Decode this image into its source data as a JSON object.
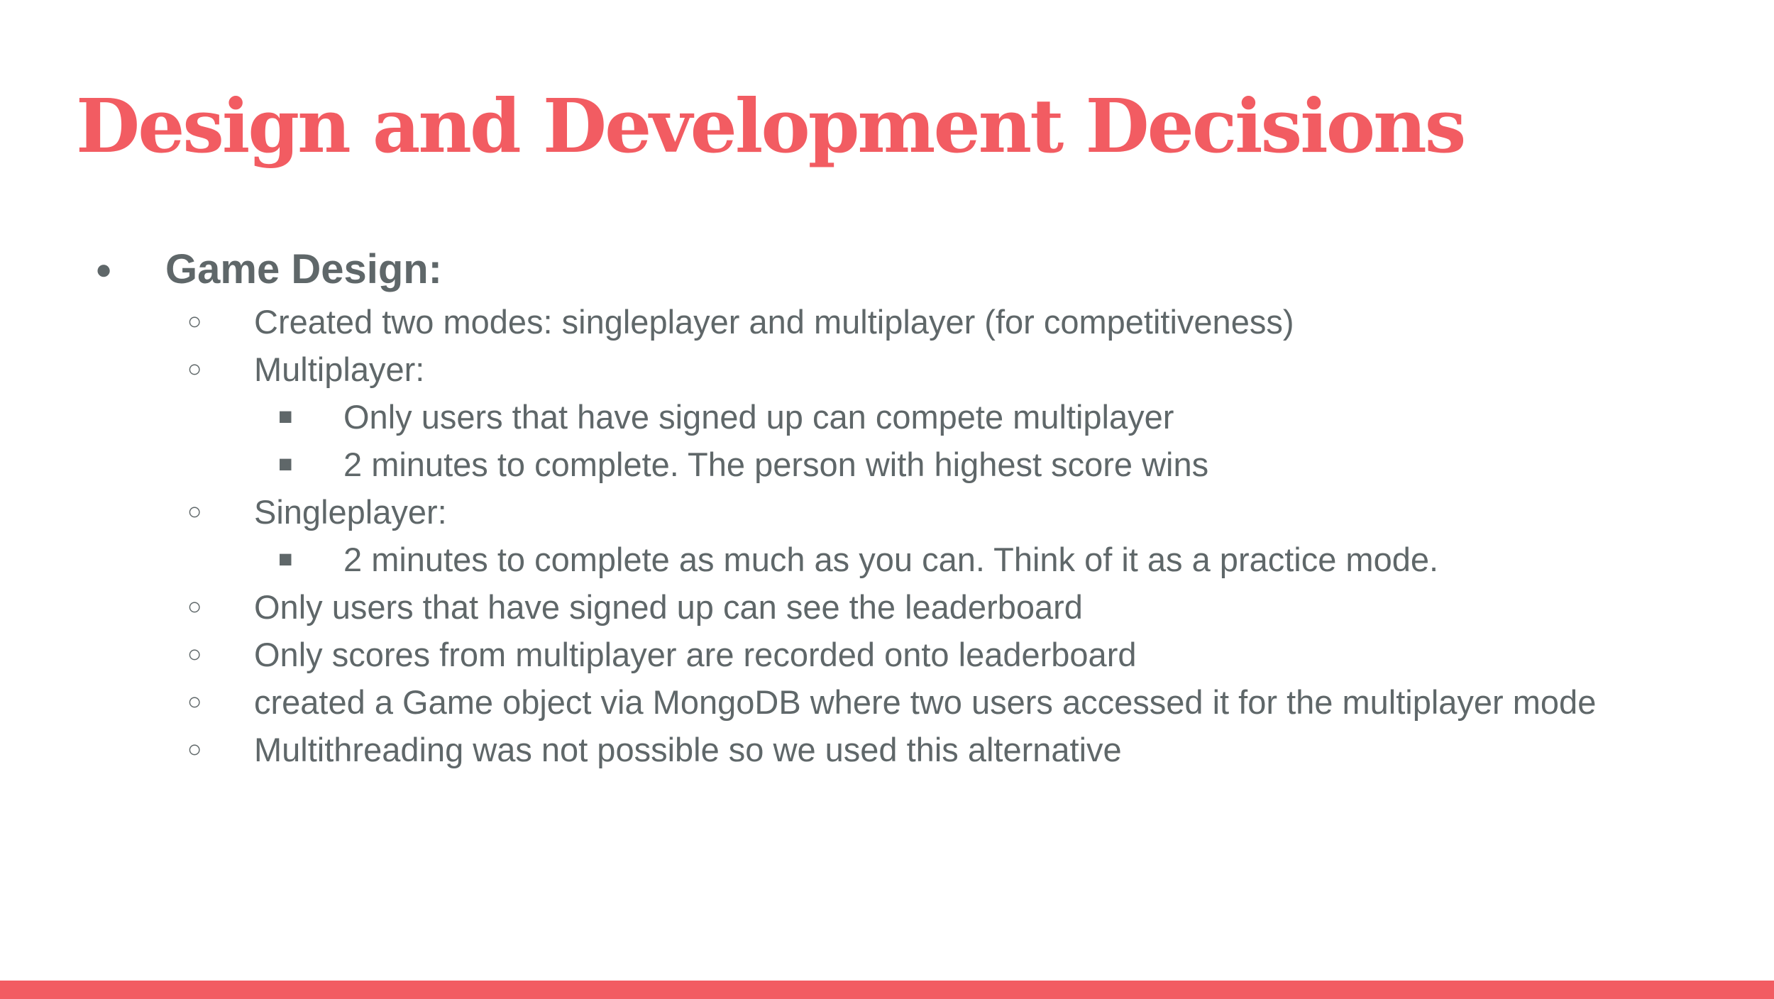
{
  "slide": {
    "title": "Design and Development Decisions",
    "accent_color": "#f25c62",
    "text_color": "#5f6769",
    "items": [
      {
        "level": 1,
        "bullet": "●",
        "text": "Game Design:"
      },
      {
        "level": 2,
        "bullet": "○",
        "text": "Created two modes: singleplayer and multiplayer (for competitiveness)"
      },
      {
        "level": 2,
        "bullet": "○",
        "text": "Multiplayer:"
      },
      {
        "level": 3,
        "bullet": "■",
        "text": "Only users that have signed up can compete multiplayer"
      },
      {
        "level": 3,
        "bullet": "■",
        "text": "2 minutes to complete. The person with highest score wins"
      },
      {
        "level": 2,
        "bullet": "○",
        "text": "Singleplayer:"
      },
      {
        "level": 3,
        "bullet": "■",
        "text": "2 minutes to complete as much as you can. Think of it as a practice mode."
      },
      {
        "level": 2,
        "bullet": "○",
        "text": "Only users that have signed up can see the leaderboard"
      },
      {
        "level": 2,
        "bullet": "○",
        "text": "Only scores from multiplayer are recorded onto leaderboard"
      },
      {
        "level": 2,
        "bullet": "○",
        "text": "created a Game object via MongoDB where two users accessed it for the multiplayer mode"
      },
      {
        "level": 2,
        "bullet": "○",
        "text": "Multithreading was not possible so we used this alternative"
      }
    ]
  }
}
